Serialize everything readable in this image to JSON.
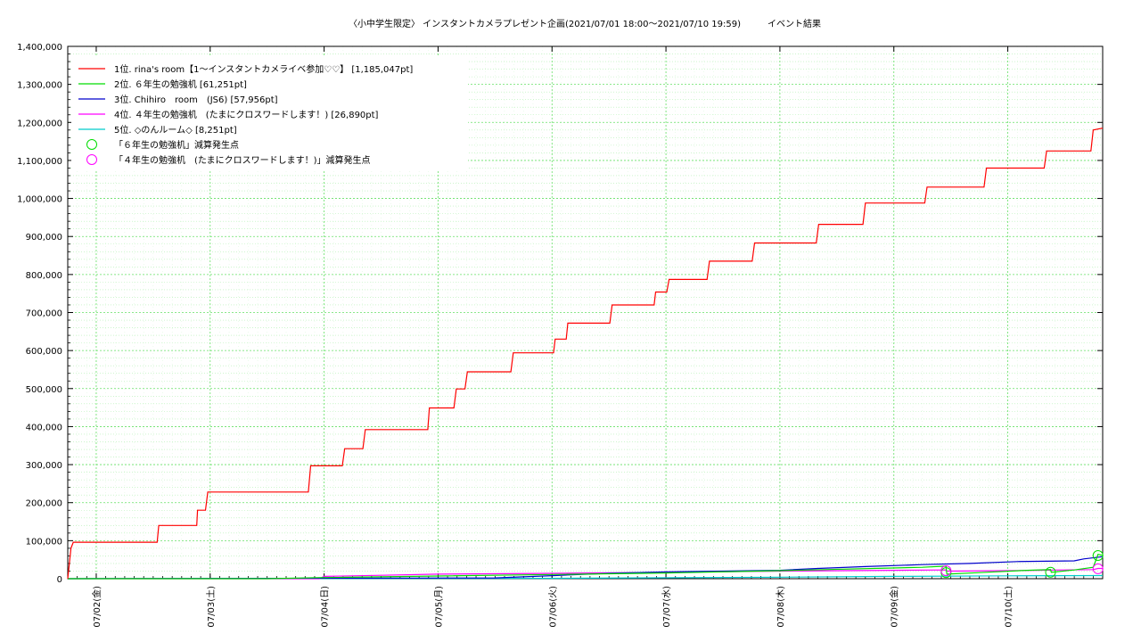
{
  "chart_data": {
    "type": "line",
    "title": "〈小中学生限定〉 インスタントカメラプレゼント企画(2021/07/01 18:00〜2021/07/10 19:59)　　　イベント結果",
    "xlabel": "",
    "ylabel": "",
    "ylim": [
      0,
      1400000
    ],
    "xlim": [
      "2021-07-01 18:00",
      "2021-07-10 19:59"
    ],
    "grid": true,
    "legend_position": "top-left",
    "x_ticks": [
      {
        "x": "2021-07-02",
        "label": "07/02(金)"
      },
      {
        "x": "2021-07-03",
        "label": "07/03(土)"
      },
      {
        "x": "2021-07-04",
        "label": "07/04(日)"
      },
      {
        "x": "2021-07-05",
        "label": "07/05(月)"
      },
      {
        "x": "2021-07-06",
        "label": "07/06(火)"
      },
      {
        "x": "2021-07-07",
        "label": "07/07(水)"
      },
      {
        "x": "2021-07-08",
        "label": "07/08(木)"
      },
      {
        "x": "2021-07-09",
        "label": "07/09(金)"
      },
      {
        "x": "2021-07-10",
        "label": "07/10(土)"
      }
    ],
    "y_ticks": [
      {
        "value": 0,
        "label": "0"
      },
      {
        "value": 100000,
        "label": "100,000"
      },
      {
        "value": 200000,
        "label": "200,000"
      },
      {
        "value": 300000,
        "label": "300,000"
      },
      {
        "value": 400000,
        "label": "400,000"
      },
      {
        "value": 500000,
        "label": "500,000"
      },
      {
        "value": 600000,
        "label": "600,000"
      },
      {
        "value": 700000,
        "label": "700,000"
      },
      {
        "value": 800000,
        "label": "800,000"
      },
      {
        "value": 900000,
        "label": "900,000"
      },
      {
        "value": 1000000,
        "label": "1,000,000"
      },
      {
        "value": 1100000,
        "label": "1,100,000"
      },
      {
        "value": 1200000,
        "label": "1,200,000"
      },
      {
        "value": 1300000,
        "label": "1,300,000"
      },
      {
        "value": 1400000,
        "label": "1,400,000"
      }
    ],
    "series": [
      {
        "name": "1位. rina's room【1〜インスタントカメライベ参加♡♡】 [1,185,047pt]",
        "color": "#ff0000",
        "points": [
          [
            "2021-07-01 18:00",
            0
          ],
          [
            "2021-07-01 18:40",
            80000
          ],
          [
            "2021-07-01 19:10",
            96000
          ],
          [
            "2021-07-02 12:50",
            96000
          ],
          [
            "2021-07-02 13:10",
            140000
          ],
          [
            "2021-07-02 21:10",
            140000
          ],
          [
            "2021-07-02 21:20",
            180000
          ],
          [
            "2021-07-02 23:00",
            180000
          ],
          [
            "2021-07-02 23:30",
            228000
          ],
          [
            "2021-07-03 20:40",
            228000
          ],
          [
            "2021-07-03 21:10",
            297000
          ],
          [
            "2021-07-04 03:50",
            297000
          ],
          [
            "2021-07-04 04:20",
            342000
          ],
          [
            "2021-07-04 08:10",
            342000
          ],
          [
            "2021-07-04 08:40",
            392000
          ],
          [
            "2021-07-04 21:50",
            392000
          ],
          [
            "2021-07-04 22:10",
            449000
          ],
          [
            "2021-07-05 03:20",
            449000
          ],
          [
            "2021-07-05 03:50",
            499000
          ],
          [
            "2021-07-05 05:40",
            499000
          ],
          [
            "2021-07-05 06:10",
            544000
          ],
          [
            "2021-07-05 15:20",
            544000
          ],
          [
            "2021-07-05 15:50",
            594000
          ],
          [
            "2021-07-06 00:20",
            594000
          ],
          [
            "2021-07-06 00:40",
            630000
          ],
          [
            "2021-07-06 03:00",
            630000
          ],
          [
            "2021-07-06 03:20",
            672000
          ],
          [
            "2021-07-06 12:10",
            672000
          ],
          [
            "2021-07-06 12:40",
            720000
          ],
          [
            "2021-07-06 21:30",
            720000
          ],
          [
            "2021-07-06 21:50",
            754000
          ],
          [
            "2021-07-07 00:10",
            754000
          ],
          [
            "2021-07-07 00:40",
            787000
          ],
          [
            "2021-07-07 08:40",
            787000
          ],
          [
            "2021-07-07 09:10",
            835000
          ],
          [
            "2021-07-07 18:10",
            835000
          ],
          [
            "2021-07-07 18:40",
            883000
          ],
          [
            "2021-07-08 07:40",
            883000
          ],
          [
            "2021-07-08 08:10",
            932000
          ],
          [
            "2021-07-08 17:30",
            932000
          ],
          [
            "2021-07-08 18:00",
            988000
          ],
          [
            "2021-07-09 06:30",
            988000
          ],
          [
            "2021-07-09 07:00",
            1030000
          ],
          [
            "2021-07-09 19:00",
            1030000
          ],
          [
            "2021-07-09 19:30",
            1080000
          ],
          [
            "2021-07-10 07:40",
            1080000
          ],
          [
            "2021-07-10 08:10",
            1125000
          ],
          [
            "2021-07-10 17:30",
            1125000
          ],
          [
            "2021-07-10 18:00",
            1180000
          ],
          [
            "2021-07-10 19:59",
            1185047
          ]
        ]
      },
      {
        "name": "2位. ６年生の勉強机 [61,251pt]",
        "color": "#00dd00",
        "points": [
          [
            "2021-07-01 18:00",
            0
          ],
          [
            "2021-07-03 12:00",
            0
          ],
          [
            "2021-07-04 00:00",
            3000
          ],
          [
            "2021-07-05 00:00",
            7000
          ],
          [
            "2021-07-06 00:00",
            11000
          ],
          [
            "2021-07-07 00:00",
            15000
          ],
          [
            "2021-07-08 00:00",
            21000
          ],
          [
            "2021-07-09 06:00",
            30000
          ],
          [
            "2021-07-09 11:00",
            33000
          ],
          [
            "2021-07-09 11:10",
            12000
          ],
          [
            "2021-07-09 18:00",
            16000
          ],
          [
            "2021-07-10 04:00",
            22000
          ],
          [
            "2021-07-10 09:00",
            24000
          ],
          [
            "2021-07-10 09:10",
            17000
          ],
          [
            "2021-07-10 14:00",
            23000
          ],
          [
            "2021-07-10 18:00",
            30000
          ],
          [
            "2021-07-10 19:00",
            64000
          ],
          [
            "2021-07-10 19:59",
            61251
          ]
        ]
      },
      {
        "name": "3位. Chihiro　room　(JS6) [57,956pt]",
        "color": "#0000cc",
        "points": [
          [
            "2021-07-01 18:00",
            0
          ],
          [
            "2021-07-05 12:00",
            2000
          ],
          [
            "2021-07-06 00:00",
            8000
          ],
          [
            "2021-07-06 12:00",
            14000
          ],
          [
            "2021-07-07 00:00",
            18000
          ],
          [
            "2021-07-07 12:00",
            20000
          ],
          [
            "2021-07-08 00:00",
            22000
          ],
          [
            "2021-07-08 08:00",
            27000
          ],
          [
            "2021-07-08 18:00",
            32000
          ],
          [
            "2021-07-09 06:00",
            37000
          ],
          [
            "2021-07-09 16:00",
            40000
          ],
          [
            "2021-07-10 02:00",
            45000
          ],
          [
            "2021-07-10 14:00",
            47000
          ],
          [
            "2021-07-10 16:00",
            52000
          ],
          [
            "2021-07-10 19:59",
            57956
          ]
        ]
      },
      {
        "name": "4位. ４年生の勉強机　(たまにクロスワードします！) [26,890pt]",
        "color": "#ff00ff",
        "points": [
          [
            "2021-07-01 18:00",
            0
          ],
          [
            "2021-07-03 23:00",
            0
          ],
          [
            "2021-07-04 00:00",
            6000
          ],
          [
            "2021-07-04 12:00",
            9000
          ],
          [
            "2021-07-05 00:00",
            12000
          ],
          [
            "2021-07-06 00:00",
            14000
          ],
          [
            "2021-07-07 00:00",
            17000
          ],
          [
            "2021-07-08 00:00",
            20000
          ],
          [
            "2021-07-09 00:00",
            22000
          ],
          [
            "2021-07-09 11:00",
            23000
          ],
          [
            "2021-07-09 11:10",
            20000
          ],
          [
            "2021-07-10 00:00",
            21000
          ],
          [
            "2021-07-10 12:00",
            23000
          ],
          [
            "2021-07-10 18:00",
            24000
          ],
          [
            "2021-07-10 19:00",
            27000
          ],
          [
            "2021-07-10 19:59",
            26890
          ]
        ]
      },
      {
        "name": "5位. ◇のんルーム◇ [8,251pt]",
        "color": "#00cccc",
        "points": [
          [
            "2021-07-01 18:00",
            0
          ],
          [
            "2021-07-06 00:00",
            1000
          ],
          [
            "2021-07-08 00:00",
            4000
          ],
          [
            "2021-07-09 00:00",
            6000
          ],
          [
            "2021-07-10 00:00",
            7500
          ],
          [
            "2021-07-10 19:59",
            8251
          ]
        ]
      }
    ],
    "events": [
      {
        "name": "「６年生の勉強机」減算発生点",
        "color": "#00dd00",
        "points": [
          [
            "2021-07-09 11:00",
            16000
          ],
          [
            "2021-07-10 09:00",
            17000
          ],
          [
            "2021-07-10 19:00",
            61000
          ]
        ]
      },
      {
        "name": "「４年生の勉強机　(たまにクロスワードします！)」減算発生点",
        "color": "#ff00ff",
        "points": [
          [
            "2021-07-09 11:00",
            21000
          ],
          [
            "2021-07-10 19:00",
            26000
          ]
        ]
      }
    ]
  }
}
